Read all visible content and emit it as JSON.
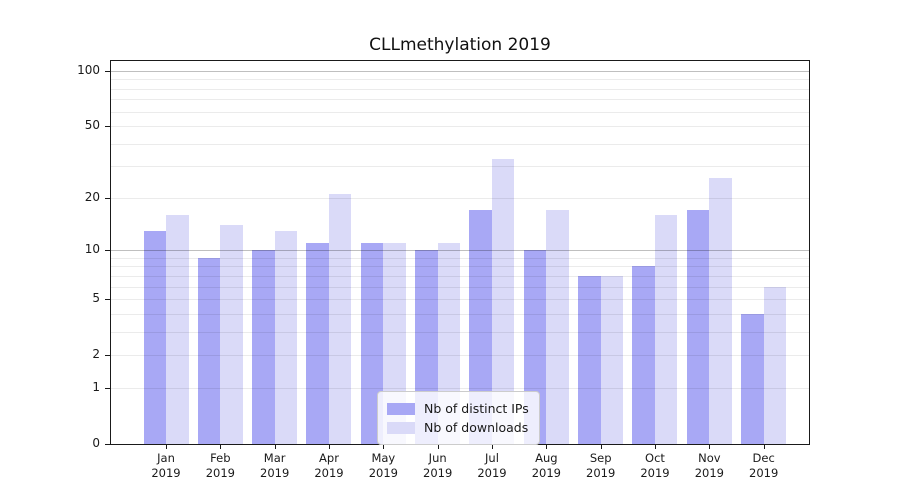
{
  "chart_data": {
    "type": "bar",
    "title": "CLLmethylation 2019",
    "categories": [
      "Jan 2019",
      "Feb 2019",
      "Mar 2019",
      "Apr 2019",
      "May 2019",
      "Jun 2019",
      "Jul 2019",
      "Aug 2019",
      "Sep 2019",
      "Oct 2019",
      "Nov 2019",
      "Dec 2019"
    ],
    "series": [
      {
        "name": "Nb of distinct IPs",
        "color": "#a8a8f5",
        "values": [
          13,
          9,
          10,
          11,
          11,
          10,
          17,
          10,
          7,
          8,
          17,
          4
        ]
      },
      {
        "name": "Nb of downloads",
        "color": "#dadaf8",
        "values": [
          16,
          14,
          13,
          21,
          11,
          11,
          33,
          17,
          7,
          16,
          26,
          6
        ]
      }
    ],
    "yscale": "log1p",
    "ylim": [
      0,
      100
    ],
    "yticks": [
      0,
      1,
      2,
      5,
      10,
      20,
      50,
      100
    ],
    "gridlines": {
      "minor": [
        1,
        2,
        3,
        4,
        5,
        6,
        7,
        8,
        9,
        20,
        30,
        40,
        50,
        60,
        70,
        80,
        90
      ],
      "emphasized": [
        10,
        100
      ],
      "minor_color": "rgba(0,0,0,0.08)",
      "emphasized_color": "rgba(0,0,0,0.25)"
    },
    "legend_position": "lower center",
    "axis_color": "#1a1a1a",
    "background_color": "#ffffff"
  }
}
